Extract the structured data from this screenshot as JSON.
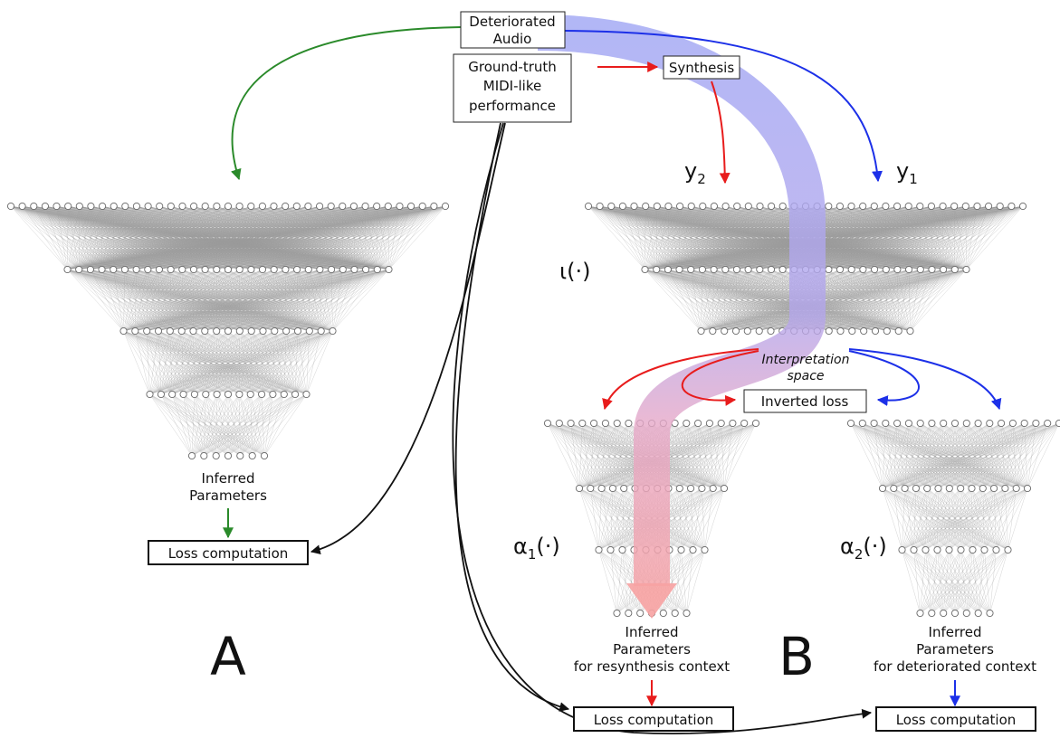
{
  "top": {
    "deteriorated_audio": [
      "Deteriorated",
      "Audio"
    ],
    "ground_truth": [
      "Ground-truth",
      "MIDI-like",
      "performance"
    ],
    "synthesis": "Synthesis"
  },
  "panel_a": {
    "letter": "A",
    "output_label": [
      "Inferred",
      "Parameters"
    ],
    "loss": "Loss computation"
  },
  "panel_b": {
    "letter": "B",
    "y2": "y",
    "y2_sub": "2",
    "y1": "y",
    "y1_sub": "1",
    "iota": "ι(·)",
    "interpretation_space": [
      "Interpretation",
      "space"
    ],
    "inverted_loss": "Inverted loss",
    "alpha1": "α",
    "alpha1_sub": "1",
    "alpha1_suffix": "(·)",
    "alpha2": "α",
    "alpha2_sub": "2",
    "alpha2_suffix": "(·)",
    "output1_label": [
      "Inferred",
      "Parameters",
      "for resynthesis context"
    ],
    "output2_label": [
      "Inferred",
      "Parameters",
      "for deteriorated context"
    ],
    "loss1": "Loss computation",
    "loss2": "Loss computation"
  },
  "colors": {
    "green": "#2a8a2a",
    "red": "#e81c1c",
    "blue": "#1c30e8",
    "black": "#111111",
    "band_blue": "#a4aaf4",
    "band_red": "#f2a6a6"
  }
}
